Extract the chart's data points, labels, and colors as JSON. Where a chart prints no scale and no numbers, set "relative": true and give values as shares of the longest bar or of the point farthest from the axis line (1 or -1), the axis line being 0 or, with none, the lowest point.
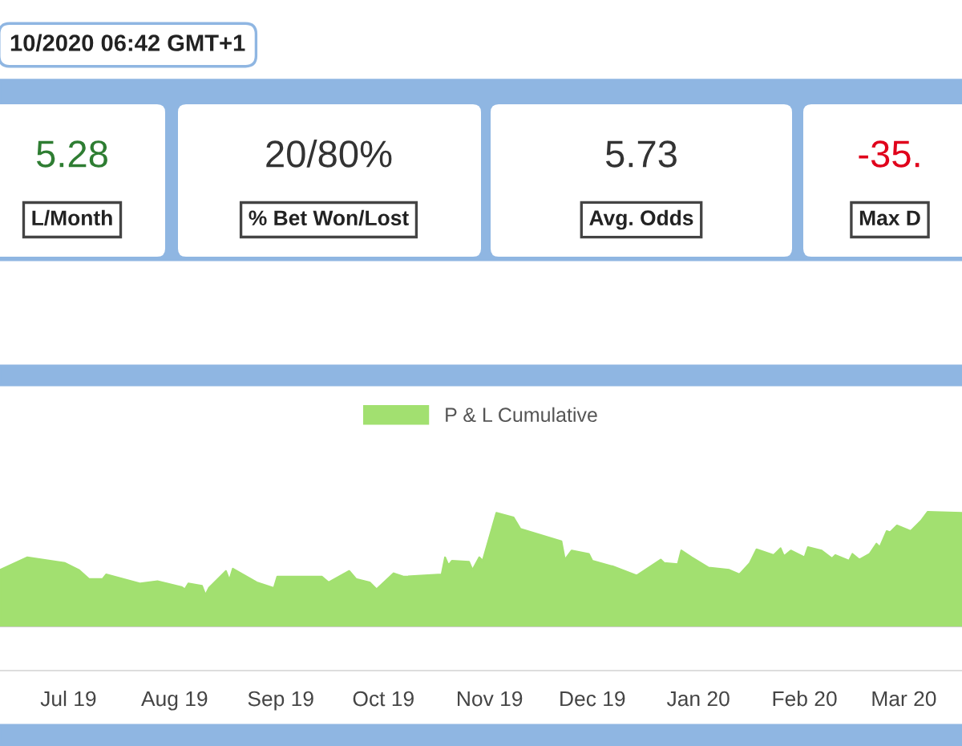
{
  "chart_data": [
    {
      "type": "other",
      "subtitle": "10/2020 06:42 GMT+1",
      "categories": [
        "5.28",
        "20/80%",
        "5.73",
        "-35."
      ],
      "annotations": [
        "L/Month",
        "% Bet Won/Lost",
        "Avg. Odds",
        "Max D"
      ],
      "colors": [
        "#2e7d32",
        "#333333",
        "#333333",
        "#e0001b"
      ]
    },
    {
      "type": "area",
      "relative": true,
      "legend": "top",
      "x": [
        "2019-06-11",
        "2019-06-19",
        "2019-06-30",
        "2019-07-04",
        "2019-07-07",
        "2019-07-11",
        "2019-07-12",
        "2019-07-22",
        "2019-07-27",
        "2019-08-03",
        "2019-08-04",
        "2019-08-05",
        "2019-08-09",
        "2019-08-10",
        "2019-08-11",
        "2019-08-16",
        "2019-08-17",
        "2019-08-18",
        "2019-08-25",
        "2019-08-30",
        "2019-08-31",
        "2019-09-13",
        "2019-09-15",
        "2019-09-21",
        "2019-09-23",
        "2019-09-27",
        "2019-09-29",
        "2019-10-04",
        "2019-10-07",
        "2019-10-18",
        "2019-10-19",
        "2019-10-20",
        "2019-10-21",
        "2019-10-26",
        "2019-10-27",
        "2019-10-29",
        "2019-10-30",
        "2019-11-03",
        "2019-11-08",
        "2019-11-10",
        "2019-11-22",
        "2019-11-23",
        "2019-11-25",
        "2019-11-30",
        "2019-12-01",
        "2019-12-07",
        "2019-12-14",
        "2019-12-21",
        "2019-12-22",
        "2019-12-26",
        "2019-12-27",
        "2019-12-30",
        "2020-01-04",
        "2020-01-10",
        "2020-01-13",
        "2020-01-16",
        "2020-01-18",
        "2020-01-23",
        "2020-01-25",
        "2020-01-26",
        "2020-01-28",
        "2020-02-01",
        "2020-02-02",
        "2020-02-06",
        "2020-02-09",
        "2020-02-10",
        "2020-02-14",
        "2020-02-15",
        "2020-02-17",
        "2020-02-20",
        "2020-02-22",
        "2020-02-23",
        "2020-02-25",
        "2020-02-26",
        "2020-02-28",
        "2020-03-03",
        "2020-03-06",
        "2020-03-08",
        "2020-03-18"
      ],
      "series": [
        {
          "name": "P & L Cumulative",
          "color": "#a2e070",
          "values": [
            0.49,
            0.6,
            0.55,
            0.49,
            0.41,
            0.41,
            0.45,
            0.37,
            0.39,
            0.34,
            0.32,
            0.37,
            0.35,
            0.27,
            0.33,
            0.48,
            0.4,
            0.5,
            0.38,
            0.33,
            0.43,
            0.43,
            0.38,
            0.48,
            0.41,
            0.38,
            0.32,
            0.46,
            0.43,
            0.45,
            0.6,
            0.53,
            0.57,
            0.56,
            0.49,
            0.6,
            0.57,
            0.99,
            0.95,
            0.85,
            0.74,
            0.58,
            0.66,
            0.63,
            0.57,
            0.52,
            0.44,
            0.58,
            0.55,
            0.54,
            0.66,
            0.6,
            0.51,
            0.49,
            0.45,
            0.55,
            0.67,
            0.62,
            0.68,
            0.61,
            0.66,
            0.6,
            0.69,
            0.66,
            0.59,
            0.62,
            0.57,
            0.63,
            0.58,
            0.63,
            0.72,
            0.69,
            0.83,
            0.82,
            0.88,
            0.83,
            0.92,
            1,
            0.99
          ]
        }
      ],
      "xlim": [
        "2019-06-11",
        "2020-03-18"
      ],
      "xticks": [
        {
          "value": "2019-07-01",
          "label": "Jul 19"
        },
        {
          "value": "2019-08-01",
          "label": "Aug 19"
        },
        {
          "value": "2019-09-01",
          "label": "Sep 19"
        },
        {
          "value": "2019-10-01",
          "label": "Oct 19"
        },
        {
          "value": "2019-11-01",
          "label": "Nov 19"
        },
        {
          "value": "2019-12-01",
          "label": "Dec 19"
        },
        {
          "value": "2020-01-01",
          "label": "Jan 20"
        },
        {
          "value": "2020-02-01",
          "label": "Feb 20"
        },
        {
          "value": "2020-03-01",
          "label": "Mar 20"
        }
      ]
    }
  ]
}
